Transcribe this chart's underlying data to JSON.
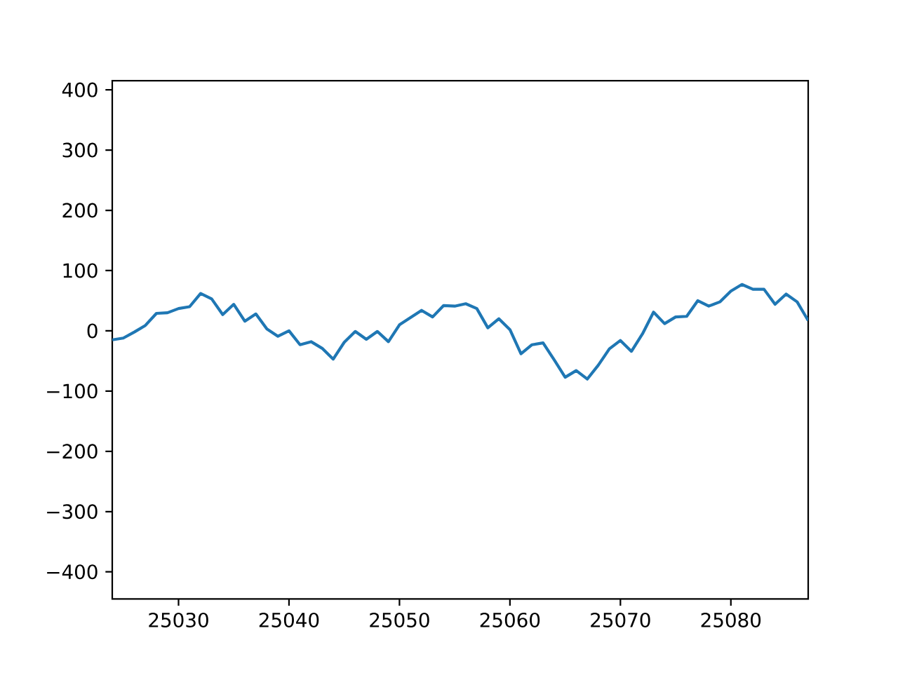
{
  "chart_data": {
    "type": "line",
    "x": [
      25024,
      25025,
      25026,
      25027,
      25028,
      25029,
      25030,
      25031,
      25032,
      25033,
      25034,
      25035,
      25036,
      25037,
      25038,
      25039,
      25040,
      25041,
      25042,
      25043,
      25044,
      25045,
      25046,
      25047,
      25048,
      25049,
      25050,
      25051,
      25052,
      25053,
      25054,
      25055,
      25056,
      25057,
      25058,
      25059,
      25060,
      25061,
      25062,
      25063,
      25064,
      25065,
      25066,
      25067,
      25068,
      25069,
      25070,
      25071,
      25072,
      25073,
      25074,
      25075,
      25076,
      25077,
      25078,
      25079,
      25080,
      25081,
      25082,
      25083,
      25084,
      25085,
      25086,
      25087
    ],
    "series": [
      {
        "color": "#1f77b4",
        "values": [
          -15,
          -12,
          -2,
          9,
          29,
          30,
          37,
          40,
          62,
          53,
          27,
          44,
          16,
          28,
          3,
          -9,
          0,
          -23,
          -18,
          -29,
          -47,
          -19,
          -1,
          -14,
          -1,
          -18,
          10,
          22,
          34,
          23,
          42,
          41,
          45,
          37,
          5,
          20,
          2,
          -38,
          -23,
          -20,
          -48,
          -77,
          -66,
          -80,
          -57,
          -30,
          -16,
          -34,
          -5,
          31,
          12,
          23,
          24,
          50,
          41,
          48,
          66,
          77,
          69,
          69,
          44,
          61,
          48,
          17
        ]
      }
    ],
    "xlim": [
      25024,
      25087
    ],
    "ylim": [
      -445,
      415
    ],
    "xticks": [
      25030,
      25040,
      25050,
      25060,
      25070,
      25080
    ],
    "yticks": [
      {
        "value": -400,
        "label": "−400"
      },
      {
        "value": -300,
        "label": "−300"
      },
      {
        "value": -200,
        "label": "−200"
      },
      {
        "value": -100,
        "label": "−100"
      },
      0,
      100,
      200,
      300,
      400
    ],
    "marker": "none",
    "line_style": "solid"
  }
}
